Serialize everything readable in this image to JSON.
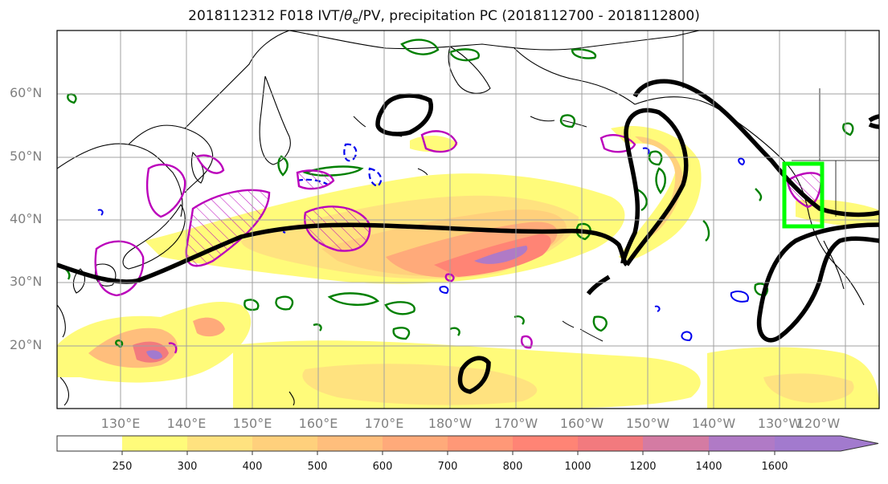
{
  "title": {
    "prefix": "2018112312 F018 IVT/",
    "theta": "θ",
    "theta_sub": "e",
    "suffix": "/PV, precipitation PC (2018112700 - 2018112800)"
  },
  "lat_labels": [
    "60°N",
    "50°N",
    "40°N",
    "30°N",
    "20°N"
  ],
  "lon_labels": [
    "130°E",
    "140°E",
    "150°E",
    "160°E",
    "170°E",
    "180°W",
    "170°W",
    "160°W",
    "150°W",
    "140°W",
    "130°W",
    "120°W"
  ],
  "colorbar": {
    "ticks": [
      "250",
      "300",
      "400",
      "500",
      "600",
      "700",
      "800",
      "1000",
      "1200",
      "1400",
      "1600"
    ],
    "colors": [
      "#ffffff",
      "#fffb7a",
      "#ffe27f",
      "#ffd07c",
      "#ffbe7c",
      "#ffaa7a",
      "#ff9877",
      "#ff8475",
      "#f27a7e",
      "#d47ba3",
      "#b07ac6",
      "#a27ace"
    ]
  },
  "colors": {
    "grid": "#a0a0a0",
    "coast": "#000000",
    "pv_contour": "#008000",
    "theta_contour": "#0000ee",
    "ivt_outline": "#bb00bb",
    "jet": "#000000",
    "box": "#00ff00"
  }
}
